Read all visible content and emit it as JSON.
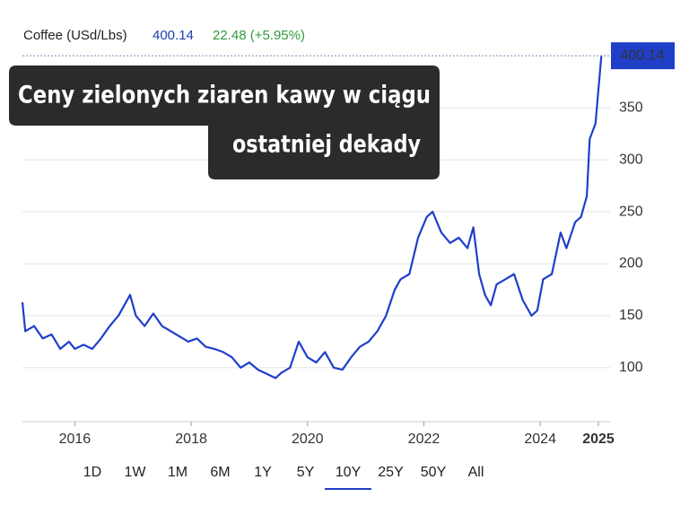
{
  "header": {
    "symbol": "Coffee (USd/Lbs)",
    "price": "400.14",
    "change": "22.48 (+5.95%)"
  },
  "chart_data": {
    "type": "line",
    "title_lines": [
      "Ceny zielonych ziaren kawy w ciągu",
      "ostatniej dekady"
    ],
    "x": [
      2015.1,
      2015.15,
      2015.3,
      2015.45,
      2015.6,
      2015.75,
      2015.9,
      2016.0,
      2016.15,
      2016.3,
      2016.45,
      2016.6,
      2016.75,
      2016.85,
      2016.95,
      2017.05,
      2017.2,
      2017.35,
      2017.5,
      2017.65,
      2017.8,
      2017.95,
      2018.1,
      2018.25,
      2018.4,
      2018.55,
      2018.7,
      2018.85,
      2019.0,
      2019.15,
      2019.3,
      2019.45,
      2019.55,
      2019.7,
      2019.85,
      2020.0,
      2020.15,
      2020.3,
      2020.45,
      2020.6,
      2020.75,
      2020.9,
      2021.05,
      2021.2,
      2021.35,
      2021.5,
      2021.6,
      2021.75,
      2021.9,
      2022.05,
      2022.15,
      2022.3,
      2022.45,
      2022.6,
      2022.75,
      2022.85,
      2022.95,
      2023.05,
      2023.15,
      2023.25,
      2023.4,
      2023.55,
      2023.7,
      2023.85,
      2023.95,
      2024.05,
      2024.2,
      2024.35,
      2024.45,
      2024.6,
      2024.7,
      2024.8,
      2024.85,
      2024.95,
      2025.05
    ],
    "series": [
      {
        "name": "Coffee",
        "color": "#1f3fc9",
        "values": [
          163,
          135,
          140,
          128,
          132,
          118,
          125,
          118,
          122,
          118,
          128,
          140,
          150,
          160,
          170,
          150,
          140,
          152,
          140,
          135,
          130,
          125,
          128,
          120,
          118,
          115,
          110,
          100,
          105,
          98,
          94,
          90,
          95,
          100,
          125,
          110,
          105,
          115,
          100,
          98,
          110,
          120,
          125,
          135,
          150,
          175,
          185,
          190,
          225,
          245,
          250,
          230,
          220,
          225,
          215,
          235,
          190,
          170,
          160,
          180,
          185,
          190,
          165,
          150,
          155,
          185,
          190,
          230,
          215,
          240,
          245,
          265,
          320,
          335,
          400.14
        ]
      }
    ],
    "xlim": [
      2015.1,
      2025.2
    ],
    "xticks": [
      2016,
      2018,
      2020,
      2022,
      2024,
      2025
    ],
    "ylim": [
      48,
      402
    ],
    "yticks": [
      100,
      150,
      200,
      250,
      300,
      350
    ],
    "grid": true,
    "highlight_last_xtick_color": "#c8102e",
    "price_tag_color": "#1f3fc9"
  },
  "range_buttons": {
    "options": [
      "1D",
      "1W",
      "1M",
      "6M",
      "1Y",
      "5Y",
      "10Y",
      "25Y",
      "50Y",
      "All"
    ],
    "selected": 6
  }
}
